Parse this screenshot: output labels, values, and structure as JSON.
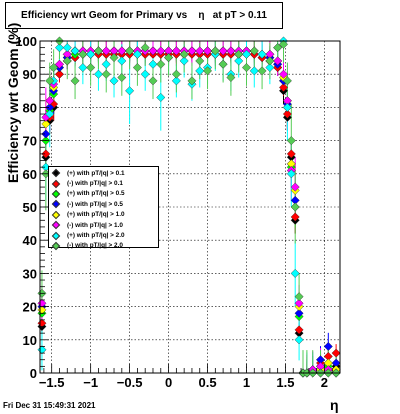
{
  "footer": {
    "date": "Fri Dec 31 15:49:31 2021"
  },
  "chart_data": {
    "type": "scatter",
    "title": "Efficiency wrt Geom for Primary vs    η   at pT > 0.11",
    "xlabel": "η",
    "ylabel": "Efficiency wrt Geom (%)",
    "xlim": [
      -1.65,
      2.2
    ],
    "ylim": [
      0,
      100
    ],
    "grid": true,
    "legend_placement": "middle-left",
    "x_ticks": [
      -1.5,
      -1,
      -0.5,
      0,
      0.5,
      1,
      1.5,
      2
    ],
    "x_tick_labels": [
      "−1.5",
      "−1",
      "−0.5",
      "0",
      "0.5",
      "1",
      "1.5",
      "2"
    ],
    "y_ticks": [
      0,
      10,
      20,
      30,
      40,
      50,
      60,
      70,
      80,
      90,
      100
    ],
    "y_tick_labels": [
      "0",
      "10",
      "20",
      "30",
      "40",
      "50",
      "60",
      "70",
      "80",
      "90",
      "100"
    ],
    "series": [
      {
        "name": "(+) with pT/|q| > 0.1",
        "color": "#000000",
        "x": [
          -1.625,
          -1.575,
          -1.525,
          -1.475,
          -1.4,
          -1.3,
          -1.2,
          -1.1,
          -1.0,
          -0.9,
          -0.8,
          -0.7,
          -0.6,
          -0.5,
          -0.4,
          -0.3,
          -0.2,
          -0.1,
          0.0,
          0.1,
          0.2,
          0.3,
          0.4,
          0.5,
          0.6,
          0.7,
          0.8,
          0.9,
          1.0,
          1.1,
          1.2,
          1.3,
          1.4,
          1.475,
          1.525,
          1.575,
          1.625,
          1.675,
          1.725,
          1.775,
          1.85,
          1.95,
          2.05,
          2.15
        ],
        "y": [
          14,
          65,
          76,
          80,
          90,
          94,
          95,
          96,
          96,
          96,
          96,
          96,
          96,
          96,
          96,
          96,
          96,
          96,
          96,
          96,
          96,
          96,
          96,
          96,
          96,
          96,
          96,
          96,
          96,
          96,
          95,
          94,
          92,
          85,
          77,
          65,
          46,
          12,
          0,
          0,
          0,
          2,
          3,
          2
        ]
      },
      {
        "name": "(-) with pT/|q| > 0.1",
        "color": "#ff0000",
        "x": [
          -1.625,
          -1.575,
          -1.525,
          -1.475,
          -1.4,
          -1.3,
          -1.2,
          -1.1,
          -1.0,
          -0.9,
          -0.8,
          -0.7,
          -0.6,
          -0.5,
          -0.4,
          -0.3,
          -0.2,
          -0.1,
          0.0,
          0.1,
          0.2,
          0.3,
          0.4,
          0.5,
          0.6,
          0.7,
          0.8,
          0.9,
          1.0,
          1.1,
          1.2,
          1.3,
          1.4,
          1.475,
          1.525,
          1.575,
          1.625,
          1.675,
          1.725,
          1.775,
          1.85,
          1.95,
          2.05,
          2.15
        ],
        "y": [
          15,
          66,
          77,
          81,
          90,
          94,
          95,
          96,
          96,
          96,
          96,
          96,
          96,
          96,
          96,
          96,
          96,
          96,
          96,
          96,
          96,
          96,
          96,
          96,
          96,
          96,
          96,
          96,
          96,
          96,
          95,
          94,
          92,
          86,
          78,
          66,
          47,
          13,
          0,
          0,
          1,
          3,
          5,
          6
        ]
      },
      {
        "name": "(+) with pT/|q| > 0.5",
        "color": "#00ff00",
        "x": [
          -1.625,
          -1.575,
          -1.525,
          -1.475,
          -1.4,
          -1.3,
          -1.2,
          -1.1,
          -1.0,
          -0.9,
          -0.8,
          -0.7,
          -0.6,
          -0.5,
          -0.4,
          -0.3,
          -0.2,
          -0.1,
          0.0,
          0.1,
          0.2,
          0.3,
          0.4,
          0.5,
          0.6,
          0.7,
          0.8,
          0.9,
          1.0,
          1.1,
          1.2,
          1.3,
          1.4,
          1.475,
          1.525,
          1.575,
          1.625,
          1.675,
          1.725,
          1.775,
          1.85,
          1.95,
          2.05,
          2.15
        ],
        "y": [
          18,
          70,
          79,
          84,
          92,
          95,
          96,
          97,
          97,
          97,
          97,
          97,
          97,
          97,
          97,
          97,
          97,
          97,
          97,
          97,
          97,
          97,
          97,
          97,
          97,
          97,
          97,
          97,
          97,
          97,
          96,
          95,
          93,
          88,
          80,
          62,
          50,
          17,
          0,
          0,
          0,
          2,
          2,
          1
        ]
      },
      {
        "name": "(-) with pT/|q| > 0.5",
        "color": "#0000ff",
        "x": [
          -1.625,
          -1.575,
          -1.525,
          -1.475,
          -1.4,
          -1.3,
          -1.2,
          -1.1,
          -1.0,
          -0.9,
          -0.8,
          -0.7,
          -0.6,
          -0.5,
          -0.4,
          -0.3,
          -0.2,
          -0.1,
          0.0,
          0.1,
          0.2,
          0.3,
          0.4,
          0.5,
          0.6,
          0.7,
          0.8,
          0.9,
          1.0,
          1.1,
          1.2,
          1.3,
          1.4,
          1.475,
          1.525,
          1.575,
          1.625,
          1.675,
          1.725,
          1.775,
          1.85,
          1.95,
          2.05,
          2.15
        ],
        "y": [
          20,
          72,
          80,
          85,
          92,
          95,
          97,
          97,
          97,
          97,
          97,
          97,
          97,
          97,
          97,
          97,
          97,
          97,
          97,
          97,
          97,
          97,
          97,
          97,
          97,
          97,
          97,
          97,
          97,
          97,
          96,
          95,
          93,
          88,
          81,
          63,
          52,
          18,
          0,
          0,
          1,
          4,
          8,
          3
        ]
      },
      {
        "name": "(+) with pT/|q| > 1.0",
        "color": "#ffff00",
        "x": [
          -1.625,
          -1.575,
          -1.525,
          -1.475,
          -1.4,
          -1.3,
          -1.2,
          -1.1,
          -1.0,
          -0.9,
          -0.8,
          -0.7,
          -0.6,
          -0.5,
          -0.4,
          -0.3,
          -0.2,
          -0.1,
          0.0,
          0.1,
          0.2,
          0.3,
          0.4,
          0.5,
          0.6,
          0.7,
          0.8,
          0.9,
          1.0,
          1.1,
          1.2,
          1.3,
          1.4,
          1.475,
          1.525,
          1.575,
          1.625,
          1.675,
          1.725,
          1.775,
          1.85,
          1.95,
          2.05,
          2.15
        ],
        "y": [
          19,
          75,
          82,
          86,
          93,
          96,
          97,
          97,
          97,
          97,
          97,
          97,
          97,
          97,
          97,
          97,
          97,
          97,
          97,
          97,
          97,
          97,
          97,
          97,
          97,
          97,
          97,
          97,
          97,
          97,
          96,
          96,
          94,
          89,
          82,
          63,
          55,
          20,
          0,
          0,
          0,
          1,
          3,
          1
        ]
      },
      {
        "name": "(-) with pT/|q| > 1.0",
        "color": "#ff00ff",
        "x": [
          -1.625,
          -1.575,
          -1.525,
          -1.475,
          -1.4,
          -1.3,
          -1.2,
          -1.1,
          -1.0,
          -0.9,
          -0.8,
          -0.7,
          -0.6,
          -0.5,
          -0.4,
          -0.3,
          -0.2,
          -0.1,
          0.0,
          0.1,
          0.2,
          0.3,
          0.4,
          0.5,
          0.6,
          0.7,
          0.8,
          0.9,
          1.0,
          1.1,
          1.2,
          1.3,
          1.4,
          1.475,
          1.525,
          1.575,
          1.625,
          1.675,
          1.725,
          1.775,
          1.85,
          1.95,
          2.05,
          2.15
        ],
        "y": [
          21,
          77,
          82,
          87,
          93,
          96,
          97,
          97,
          97,
          97,
          97,
          97,
          97,
          97,
          97,
          97,
          97,
          97,
          97,
          97,
          97,
          97,
          97,
          97,
          97,
          97,
          97,
          97,
          97,
          97,
          96,
          96,
          94,
          90,
          82,
          61,
          56,
          21,
          0,
          0,
          1,
          2,
          1,
          0
        ]
      },
      {
        "name": "(+) with pT/|q| > 2.0",
        "color": "#00ffff",
        "x": [
          -1.625,
          -1.575,
          -1.525,
          -1.475,
          -1.4,
          -1.3,
          -1.2,
          -1.1,
          -1.0,
          -0.9,
          -0.8,
          -0.7,
          -0.6,
          -0.5,
          -0.4,
          -0.3,
          -0.2,
          -0.1,
          0.0,
          0.1,
          0.2,
          0.3,
          0.4,
          0.5,
          0.6,
          0.7,
          0.8,
          0.9,
          1.0,
          1.1,
          1.2,
          1.3,
          1.4,
          1.475,
          1.525,
          1.575,
          1.625,
          1.675,
          1.725,
          1.775,
          1.85,
          1.95,
          2.05,
          2.15
        ],
        "y": [
          7,
          62,
          78,
          88,
          98,
          98,
          97,
          92,
          96,
          90,
          93,
          88,
          94,
          85,
          96,
          90,
          93,
          83,
          95,
          88,
          94,
          87,
          91,
          92,
          96,
          93,
          90,
          94,
          96,
          91,
          96,
          92,
          98,
          100,
          80,
          60,
          30,
          10,
          0,
          0,
          0,
          0,
          0,
          0
        ]
      },
      {
        "name": "(-) with pT/|q| > 2.0",
        "color": "#55cc55",
        "x": [
          -1.625,
          -1.575,
          -1.525,
          -1.475,
          -1.4,
          -1.3,
          -1.2,
          -1.1,
          -1.0,
          -0.9,
          -0.8,
          -0.7,
          -0.6,
          -0.5,
          -0.4,
          -0.3,
          -0.2,
          -0.1,
          0.0,
          0.1,
          0.2,
          0.3,
          0.4,
          0.5,
          0.6,
          0.7,
          0.8,
          0.9,
          1.0,
          1.1,
          1.2,
          1.3,
          1.4,
          1.475,
          1.525,
          1.575,
          1.625,
          1.675,
          1.725,
          1.775,
          1.85,
          1.95,
          2.05,
          2.15
        ],
        "y": [
          24,
          60,
          88,
          92,
          100,
          94,
          88,
          96,
          92,
          97,
          90,
          95,
          89,
          97,
          92,
          98,
          88,
          93,
          95,
          90,
          96,
          88,
          94,
          91,
          97,
          93,
          89,
          96,
          92,
          97,
          91,
          94,
          98,
          99,
          88,
          70,
          50,
          23,
          0,
          0,
          0,
          0,
          0,
          0
        ]
      }
    ]
  }
}
